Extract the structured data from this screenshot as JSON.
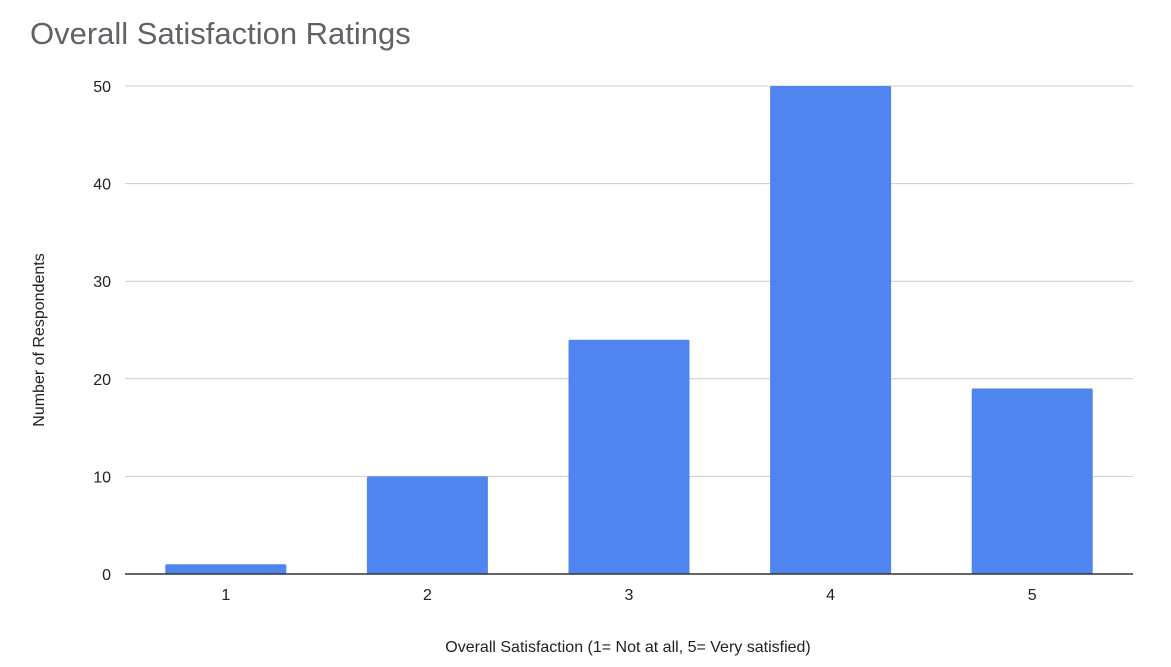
{
  "chart_data": {
    "type": "bar",
    "title": "Overall Satisfaction Ratings",
    "xlabel": "Overall Satisfaction (1= Not at all, 5= Very satisfied)",
    "ylabel": "Number of Respondents",
    "categories": [
      "1",
      "2",
      "3",
      "4",
      "5"
    ],
    "values": [
      1,
      10,
      24,
      50,
      19
    ],
    "ylim": [
      0,
      50
    ],
    "yticks": [
      "0",
      "10",
      "20",
      "30",
      "40",
      "50"
    ],
    "grid": true,
    "legend": "none",
    "bar_color": "#5084ee"
  }
}
